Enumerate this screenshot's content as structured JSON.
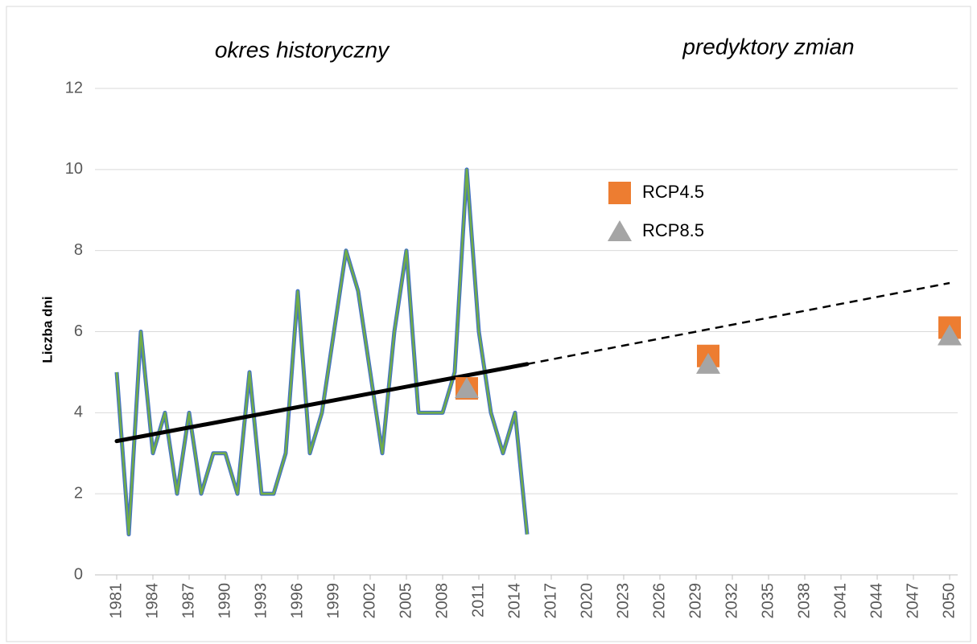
{
  "chart_data": {
    "type": "line",
    "annotations": [
      "okres historyczny",
      "predyktory zmian"
    ],
    "y_label": "Liczba dni",
    "xlim": [
      1981,
      2050
    ],
    "xticks": [
      1981,
      1984,
      1987,
      1990,
      1993,
      1996,
      1999,
      2002,
      2005,
      2008,
      2011,
      2014,
      2017,
      2020,
      2023,
      2026,
      2029,
      2032,
      2035,
      2038,
      2041,
      2044,
      2047,
      2050
    ],
    "ylim": [
      0,
      12
    ],
    "yticks": [
      0,
      2,
      4,
      6,
      8,
      10,
      12
    ],
    "grid": true,
    "x": [
      1981,
      1982,
      1983,
      1984,
      1985,
      1986,
      1987,
      1988,
      1989,
      1990,
      1991,
      1992,
      1993,
      1994,
      1995,
      1996,
      1997,
      1998,
      1999,
      2000,
      2001,
      2002,
      2003,
      2004,
      2005,
      2006,
      2007,
      2008,
      2009,
      2010,
      2011,
      2012,
      2013,
      2014,
      2015
    ],
    "values": [
      5,
      1,
      6,
      3,
      4,
      2,
      4,
      2,
      3,
      3,
      2,
      5,
      2,
      2,
      3,
      7,
      3,
      4,
      6,
      8,
      7,
      5,
      3,
      6,
      8,
      4,
      4,
      4,
      5,
      10,
      6,
      4,
      3,
      4,
      1
    ],
    "color": "#70ad47",
    "outline_color": "#4472c4",
    "trend": {
      "x": [
        1981,
        2015,
        2050
      ],
      "values": [
        3.3,
        5.2,
        7.2
      ],
      "color": "#000000"
    },
    "series": [
      {
        "name": "RCP4.5",
        "marker": "square",
        "color": "#ed7d31",
        "x": [
          2010,
          2030,
          2050
        ],
        "values": [
          4.6,
          5.4,
          6.1
        ]
      },
      {
        "name": "RCP8.5",
        "marker": "triangle",
        "color": "#a5a5a5",
        "x": [
          2010,
          2030,
          2050
        ],
        "values": [
          4.6,
          5.2,
          5.9
        ]
      }
    ]
  }
}
